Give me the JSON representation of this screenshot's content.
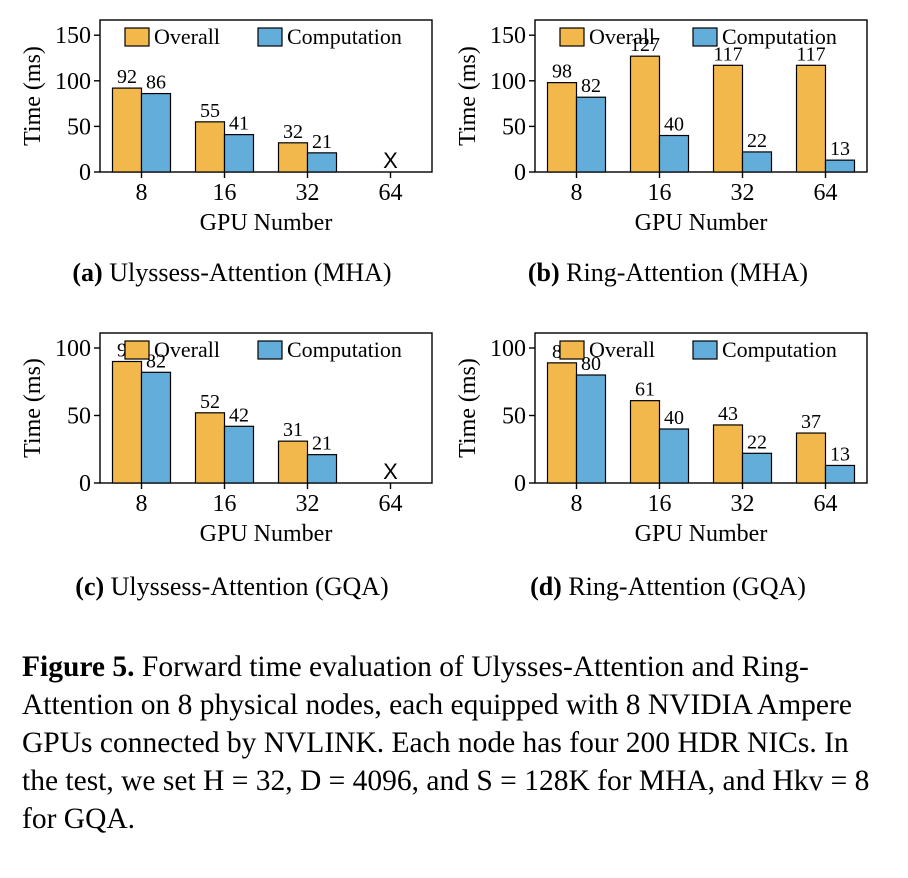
{
  "colors": {
    "overall": "#F2B84B",
    "computation": "#62ADD9"
  },
  "chart_data": [
    {
      "type": "bar",
      "id": "a",
      "caption_label": "(a)",
      "caption_text": "Ulyssess-Attention (MHA)",
      "categories": [
        "8",
        "16",
        "32",
        "64"
      ],
      "series": [
        {
          "name": "Overall",
          "values": [
            92,
            55,
            32,
            null
          ]
        },
        {
          "name": "Computation",
          "values": [
            86,
            41,
            21,
            null
          ]
        }
      ],
      "missing_marker": "X",
      "xlabel": "GPU Number",
      "ylabel": "Time (ms)",
      "ylim": [
        0,
        150
      ],
      "yticks": [
        0,
        50,
        100,
        150
      ],
      "legend": "top"
    },
    {
      "type": "bar",
      "id": "b",
      "caption_label": "(b)",
      "caption_text": "Ring-Attention (MHA)",
      "categories": [
        "8",
        "16",
        "32",
        "64"
      ],
      "series": [
        {
          "name": "Overall",
          "values": [
            98,
            127,
            117,
            117
          ]
        },
        {
          "name": "Computation",
          "values": [
            82,
            40,
            22,
            13
          ]
        }
      ],
      "xlabel": "GPU Number",
      "ylabel": "Time (ms)",
      "ylim": [
        0,
        150
      ],
      "yticks": [
        0,
        50,
        100,
        150
      ],
      "legend": "top"
    },
    {
      "type": "bar",
      "id": "c",
      "caption_label": "(c)",
      "caption_text": "Ulyssess-Attention (GQA)",
      "categories": [
        "8",
        "16",
        "32",
        "64"
      ],
      "series": [
        {
          "name": "Overall",
          "values": [
            90,
            52,
            31,
            null
          ]
        },
        {
          "name": "Computation",
          "values": [
            82,
            42,
            21,
            null
          ]
        }
      ],
      "missing_marker": "X",
      "xlabel": "GPU Number",
      "ylabel": "Time (ms)",
      "ylim": [
        0,
        100
      ],
      "yticks": [
        0,
        50,
        100
      ],
      "legend": "top"
    },
    {
      "type": "bar",
      "id": "d",
      "caption_label": "(d)",
      "caption_text": "Ring-Attention (GQA)",
      "categories": [
        "8",
        "16",
        "32",
        "64"
      ],
      "series": [
        {
          "name": "Overall",
          "values": [
            89,
            61,
            43,
            37
          ]
        },
        {
          "name": "Computation",
          "values": [
            80,
            40,
            22,
            13
          ]
        }
      ],
      "xlabel": "GPU Number",
      "ylabel": "Time (ms)",
      "ylim": [
        0,
        100
      ],
      "yticks": [
        0,
        50,
        100
      ],
      "legend": "top"
    }
  ],
  "caption": {
    "label": "Figure 5.",
    "text": "Forward time evaluation of Ulysses-Attention and Ring-Attention on 8 physical nodes, each equipped with 8 NVIDIA Ampere GPUs connected by NVLINK. Each node has four 200 HDR NICs. In the test, we set H = 32, D = 4096, and S = 128K for MHA, and Hkv = 8 for GQA."
  }
}
